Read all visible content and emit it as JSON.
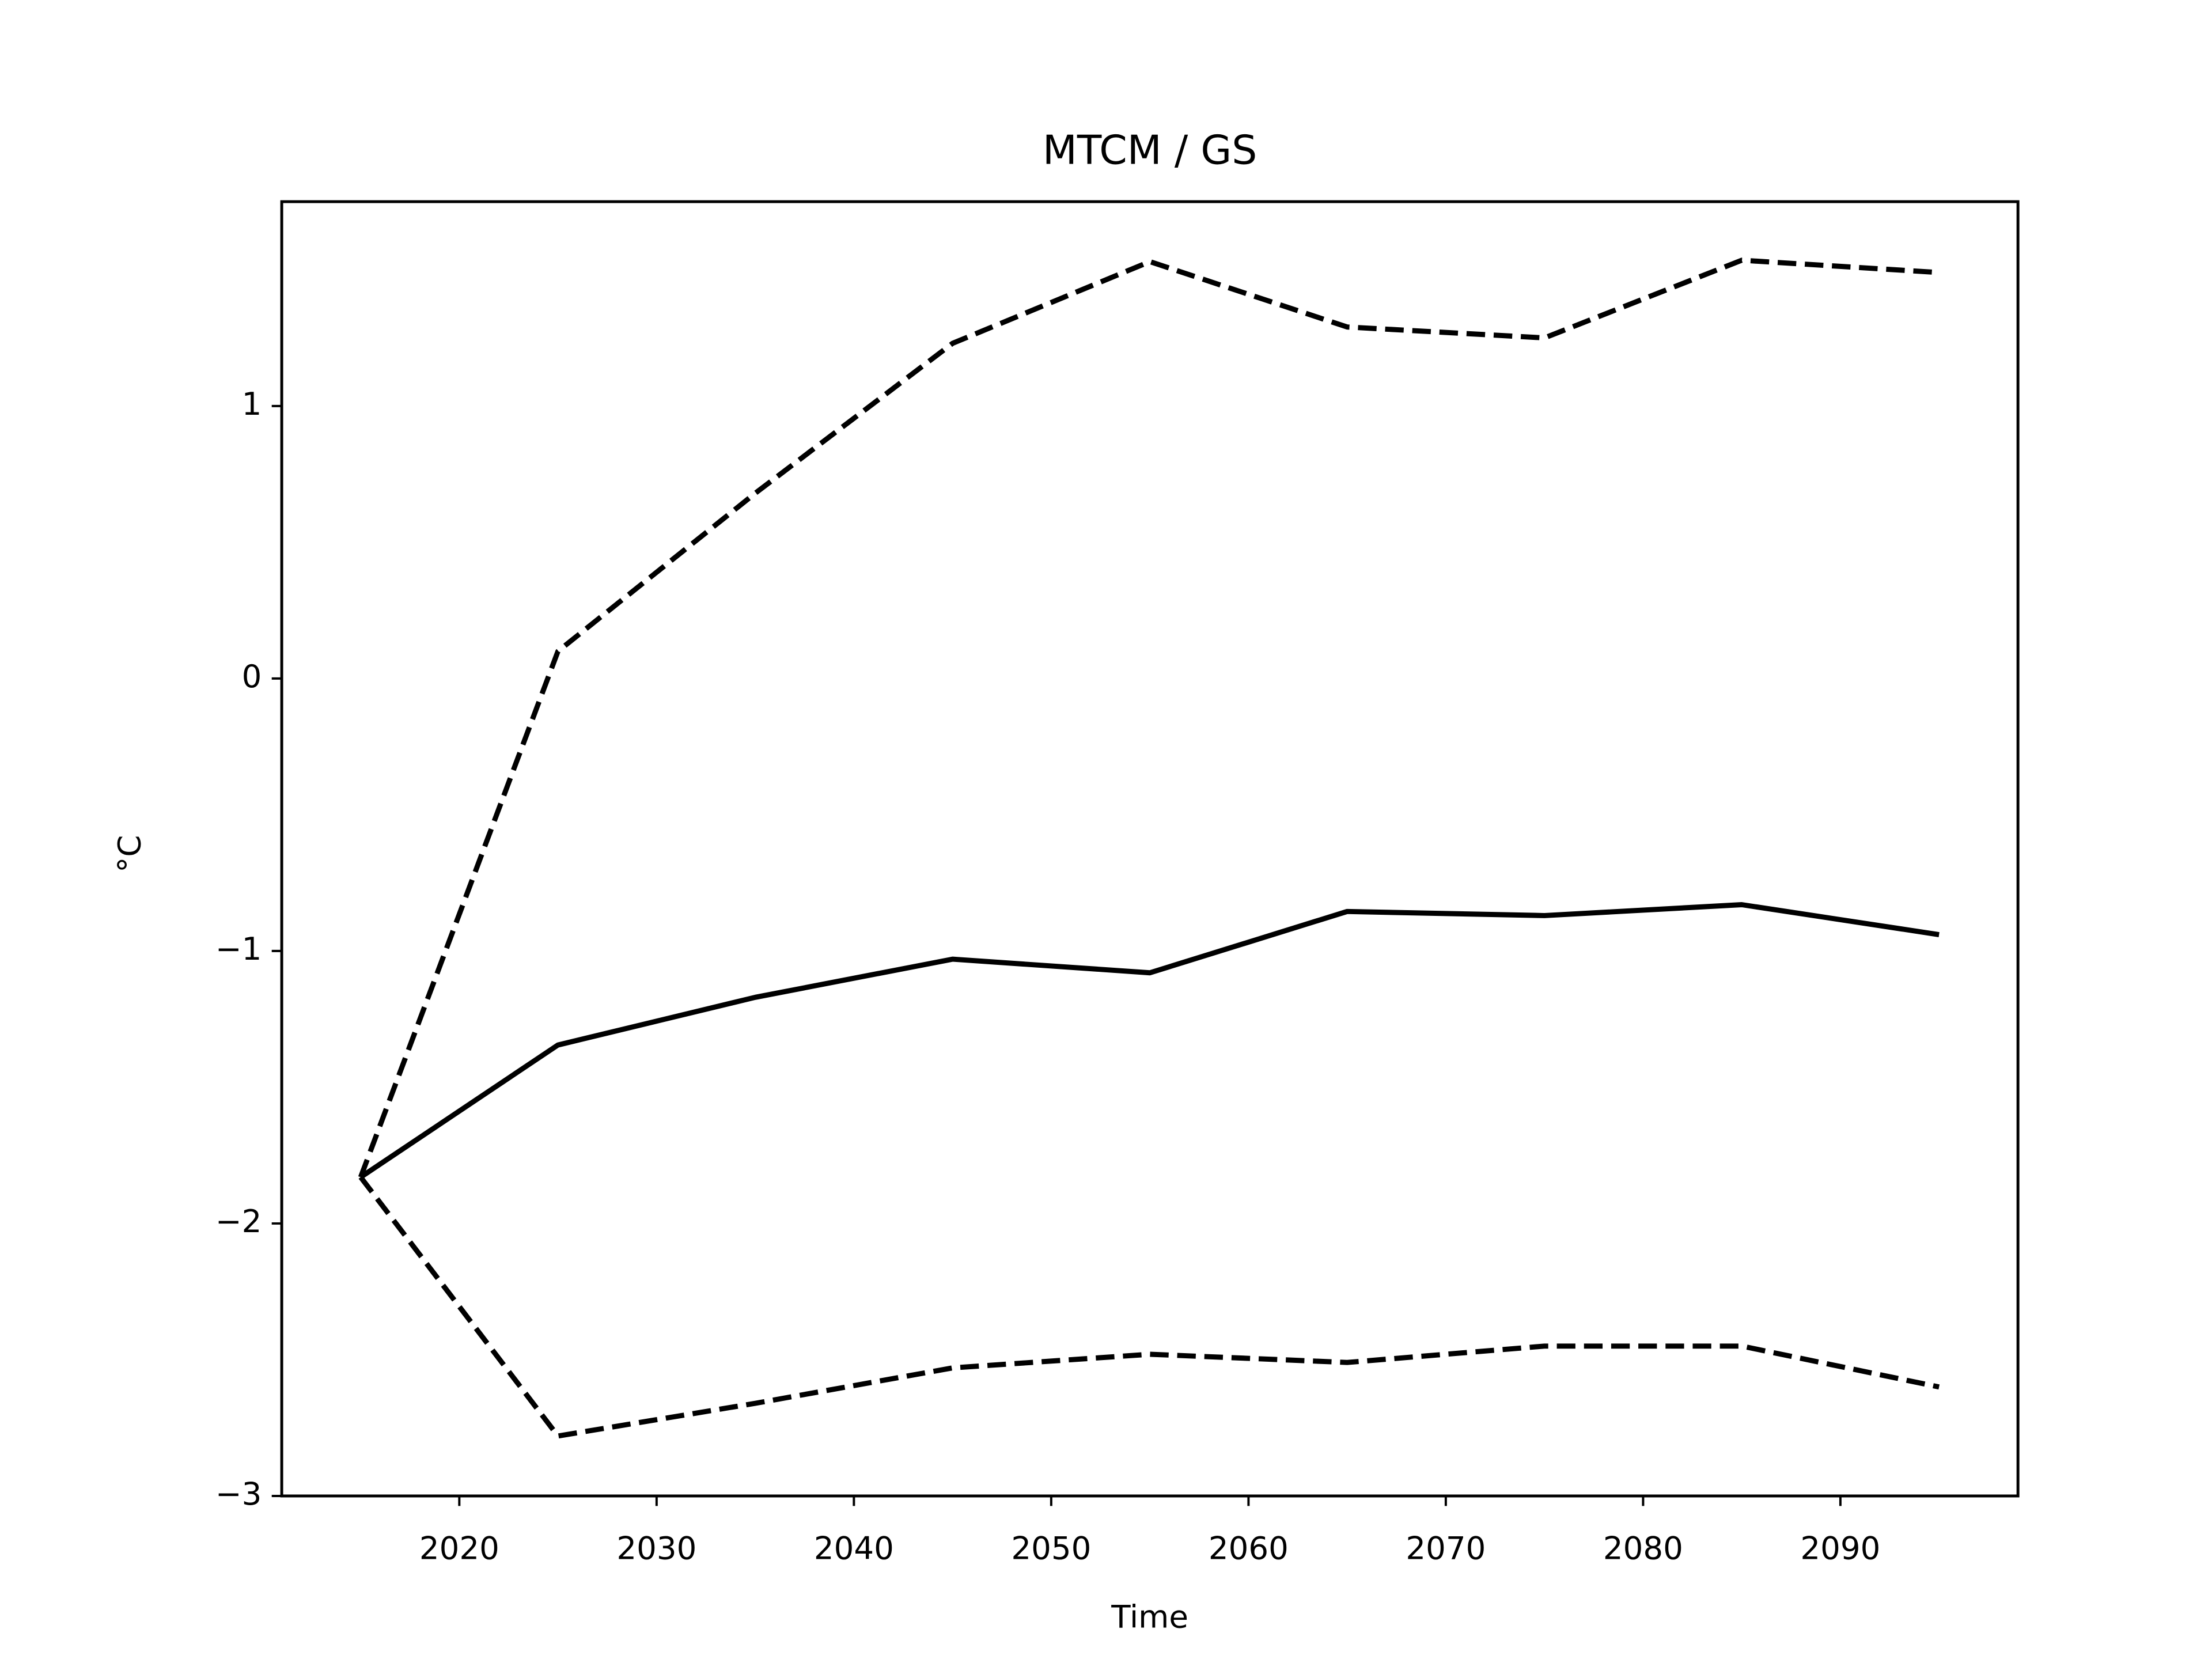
{
  "chart_data": {
    "type": "line",
    "title": "MTCM / GS",
    "xlabel": "Time",
    "ylabel": "°C",
    "x": [
      2015,
      2025,
      2035,
      2045,
      2055,
      2065,
      2075,
      2085,
      2095
    ],
    "series": [
      {
        "color": "#000000",
        "dash": "solid",
        "values": [
          -1.83,
          -1.345,
          -1.17,
          -1.03,
          -1.08,
          -0.855,
          -0.87,
          -0.83,
          -0.94
        ]
      },
      {
        "color": "#000000",
        "dash": "dashed",
        "values": [
          -1.83,
          0.1,
          0.68,
          1.23,
          1.53,
          1.29,
          1.25,
          1.535,
          1.49
        ]
      },
      {
        "color": "#000000",
        "dash": "dashed",
        "values": [
          -1.83,
          -2.78,
          -2.66,
          -2.53,
          -2.48,
          -2.51,
          -2.45,
          -2.45,
          -2.6
        ]
      }
    ],
    "xlim": [
      2011,
      2099
    ],
    "xticks": [
      2020,
      2030,
      2040,
      2050,
      2060,
      2070,
      2080,
      2090
    ],
    "ylim": [
      -3.0,
      1.75
    ],
    "yticks": [
      {
        "value": -3,
        "label": "−3"
      },
      {
        "value": -2,
        "label": "−2"
      },
      {
        "value": -1,
        "label": "−1"
      },
      0,
      1
    ],
    "grid": false
  }
}
